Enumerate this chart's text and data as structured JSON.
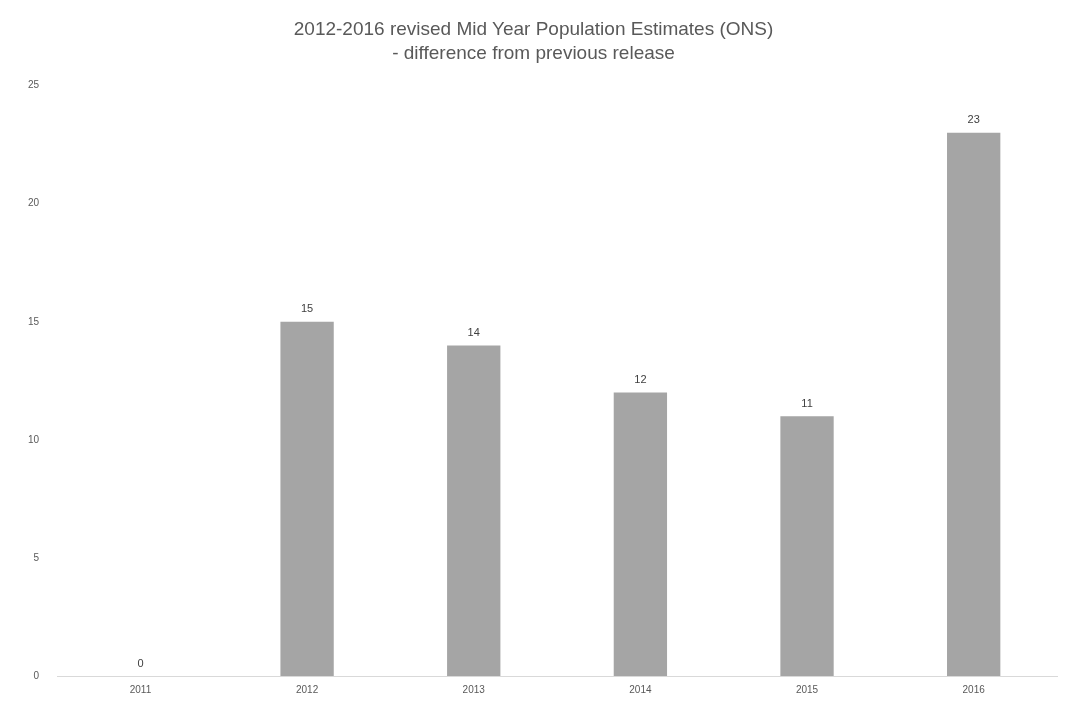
{
  "chart_data": {
    "type": "bar",
    "title": "2012-2016 revised Mid Year Population Estimates (ONS)",
    "subtitle": "- difference from previous release",
    "categories": [
      "2011",
      "2012",
      "2013",
      "2014",
      "2015",
      "2016"
    ],
    "values": [
      0,
      15,
      14,
      12,
      11,
      23
    ],
    "color": "#a5a5a5",
    "ylim": [
      0,
      25
    ],
    "yticks": [
      0,
      5,
      10,
      15,
      20,
      25
    ],
    "grid": false,
    "data_labels": true
  }
}
